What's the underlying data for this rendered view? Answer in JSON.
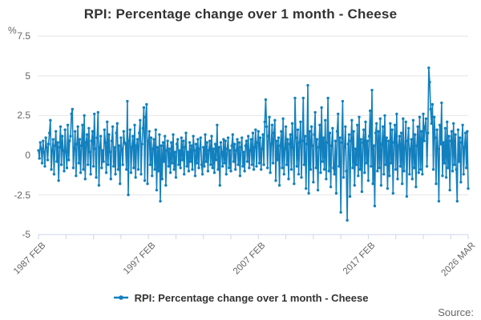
{
  "title": "RPI: Percentage change over 1 month - Cheese",
  "legend": {
    "label": "RPI: Percentage change over 1 month - Cheese"
  },
  "source_label": "Source:",
  "y_axis": {
    "unit": "%"
  },
  "colors": {
    "series_blue": "#1380be",
    "grid_gray": "#e6e6e6",
    "axis_line": "#ccd6eb",
    "title_text": "#333333",
    "axis_text": "#666666"
  },
  "chart_data": {
    "type": "line",
    "title": "RPI: Percentage change over 1 month - Cheese",
    "xlabel": "",
    "ylabel": "%",
    "ylim": [
      -5,
      7.5
    ],
    "y_ticks": [
      7.5,
      5,
      2.5,
      0,
      -2.5,
      -5
    ],
    "grid": true,
    "legend_position": "bottom",
    "x_start": "1987 FEB",
    "x_end": "2026 MAR",
    "x_tick_labels": [
      {
        "index": 0,
        "label": "1987 FEB"
      },
      {
        "index": 120,
        "label": "1997 FEB"
      },
      {
        "index": 240,
        "label": "2007 FEB"
      },
      {
        "index": 360,
        "label": "2017 FEB"
      },
      {
        "index": 469,
        "label": "2026 MAR"
      }
    ],
    "minor_tick_every_points": 30,
    "series": [
      {
        "name": "RPI: Percentage change over 1 month - Cheese",
        "color": "#1380be",
        "values": [
          0.3,
          -0.2,
          0.8,
          0.4,
          -0.5,
          0.9,
          0.2,
          -0.7,
          1.1,
          0.5,
          -0.3,
          0.7,
          1.4,
          2.2,
          -0.9,
          0.3,
          1.0,
          -1.2,
          0.6,
          1.5,
          -0.4,
          0.8,
          -1.6,
          0.5,
          1.8,
          -0.6,
          1.2,
          0.3,
          -1.0,
          1.6,
          0.2,
          -0.8,
          1.9,
          -0.3,
          0.9,
          1.2,
          2.6,
          2.9,
          -0.8,
          0.4,
          1.5,
          -1.3,
          0.7,
          1.8,
          -0.5,
          1.0,
          -1.1,
          0.6,
          1.9,
          -0.9,
          2.5,
          -1.5,
          0.8,
          1.3,
          -0.6,
          1.7,
          0.2,
          -1.2,
          0.9,
          1.5,
          -0.7,
          2.6,
          0.4,
          -1.4,
          1.1,
          2.7,
          -1.9,
          0.5,
          1.2,
          -0.8,
          0.3,
          -0.4,
          1.6,
          0.8,
          -1.1,
          2.1,
          -0.6,
          1.3,
          0.2,
          -1.5,
          0.9,
          1.8,
          -0.7,
          0.5,
          -1.2,
          1.4,
          2.0,
          -0.9,
          0.6,
          -1.8,
          1.1,
          0.4,
          -0.6,
          1.5,
          0.8,
          0.7,
          -0.9,
          3.4,
          -2.5,
          0.9,
          1.6,
          -1.1,
          0.5,
          1.2,
          -0.8,
          1.9,
          -1.4,
          0.6,
          1.0,
          -0.9,
          1.4,
          2.2,
          -1.2,
          0.7,
          1.7,
          3.0,
          -1.6,
          2.4,
          3.2,
          -1.8,
          0.9,
          1.5,
          -0.6,
          1.1,
          -1.3,
          0.4,
          1.0,
          -0.9,
          1.6,
          -2.2,
          0.5,
          -1.0,
          1.3,
          -2.9,
          0.6,
          -1.5,
          0.8,
          -0.4,
          1.2,
          -1.9,
          0.3,
          0.9,
          -0.7,
          0.4,
          -1.1,
          0.8,
          -0.5,
          1.3,
          -0.9,
          0.2,
          -1.4,
          0.7,
          1.0,
          -0.6,
          0.3,
          -0.8,
          1.1,
          -0.3,
          0.9,
          -1.2,
          0.5,
          1.4,
          -0.7,
          0.2,
          -1.0,
          0.8,
          -0.4,
          0.6,
          -0.9,
          1.2,
          0.3,
          -1.3,
          0.7,
          -0.5,
          1.0,
          -0.8,
          0.4,
          1.1,
          -0.6,
          -1.2,
          0.5,
          -0.7,
          1.3,
          -0.4,
          0.8,
          -1.0,
          0.3,
          0.9,
          -0.6,
          1.2,
          -0.8,
          0.4,
          -1.1,
          0.7,
          -0.3,
          1.9,
          -0.9,
          0.5,
          -1.9,
          0.8,
          0.2,
          -0.7,
          1.0,
          -0.5,
          0.9,
          -1.2,
          0.4,
          1.1,
          -0.8,
          0.3,
          -1.0,
          0.6,
          1.3,
          -0.4,
          0.7,
          -0.9,
          0.3,
          1.0,
          -0.6,
          0.8,
          -1.3,
          0.5,
          1.1,
          -0.7,
          0.2,
          -1.0,
          0.6,
          0.9,
          -0.4,
          1.2,
          -0.8,
          0.3,
          1.0,
          -0.6,
          1.4,
          -0.9,
          0.5,
          1.6,
          -0.7,
          0.8,
          1.5,
          -0.5,
          1.1,
          -0.9,
          0.4,
          1.3,
          -0.6,
          2.1,
          3.5,
          1.8,
          -0.8,
          1.2,
          2.4,
          -1.1,
          0.7,
          1.9,
          -0.5,
          1.4,
          2.2,
          -1.6,
          0.9,
          -0.3,
          1.1,
          -1.9,
          0.6,
          1.5,
          -0.8,
          2.3,
          -1.2,
          0.4,
          1.8,
          -0.6,
          1.0,
          -1.5,
          0.7,
          1.3,
          -0.9,
          2.0,
          0.5,
          -1.8,
          3.6,
          1.1,
          -0.7,
          1.6,
          -1.2,
          0.8,
          2.1,
          -1.4,
          0.9,
          3.6,
          -0.6,
          1.2,
          -2.1,
          0.7,
          4.4,
          -2.4,
          1.5,
          -0.9,
          1.8,
          0.6,
          -1.7,
          1.3,
          2.7,
          -0.8,
          1.0,
          -2.2,
          0.5,
          1.9,
          -1.1,
          3.0,
          -0.4,
          1.1,
          -0.9,
          2.2,
          -1.5,
          0.8,
          3.6,
          -1.0,
          1.4,
          -2.0,
          0.6,
          1.7,
          -0.8,
          -1.2,
          0.9,
          -2.4,
          1.5,
          2.6,
          -0.7,
          1.1,
          -3.6,
          0.8,
          3.4,
          -1.4,
          0.5,
          1.8,
          -1.0,
          -4.1,
          0.7,
          1.3,
          -2.6,
          0.9,
          2.2,
          -0.8,
          1.5,
          -1.9,
          0.4,
          -0.6,
          1.9,
          -1.3,
          2.4,
          -0.9,
          1.0,
          -2.3,
          0.8,
          1.6,
          -1.1,
          2.1,
          -0.5,
          0.9,
          -1.6,
          1.2,
          2.8,
          -0.7,
          4.1,
          -1.8,
          0.6,
          -3.2,
          1.4,
          2.0,
          -1.0,
          1.5,
          -0.8,
          2.3,
          -1.9,
          0.7,
          1.8,
          -1.2,
          2.5,
          -0.6,
          1.1,
          -2.1,
          0.9,
          -1.3,
          2.0,
          -0.5,
          1.6,
          -2.4,
          0.8,
          1.9,
          -0.9,
          2.6,
          -1.5,
          0.6,
          1.2,
          -0.7,
          1.4,
          -1.8,
          2.3,
          -1.0,
          0.5,
          2.1,
          -2.6,
          0.9,
          1.7,
          -1.2,
          0.4,
          1.0,
          -1.5,
          2.2,
          -0.8,
          1.3,
          -2.0,
          0.6,
          1.8,
          -1.1,
          2.4,
          -0.9,
          1.5,
          -1.2,
          2.6,
          0.9,
          1.8,
          2.3,
          -0.7,
          1.4,
          5.5,
          4.6,
          2.9,
          2.0,
          3.2,
          -0.9,
          2.4,
          1.1,
          -1.8,
          1.6,
          0.4,
          -2.9,
          1.9,
          0.7,
          3.3,
          -1.3,
          0.8,
          -0.5,
          1.7,
          -1.4,
          2.1,
          -0.8,
          1.2,
          -2.2,
          0.9,
          1.5,
          -1.0,
          2.0,
          -0.6,
          1.3,
          -0.9,
          -2.9,
          1.6,
          -0.4,
          1.1,
          -1.7,
          0.8,
          1.9,
          -1.2,
          0.5,
          1.4,
          -0.8,
          1.5,
          -2.1
        ]
      }
    ]
  }
}
